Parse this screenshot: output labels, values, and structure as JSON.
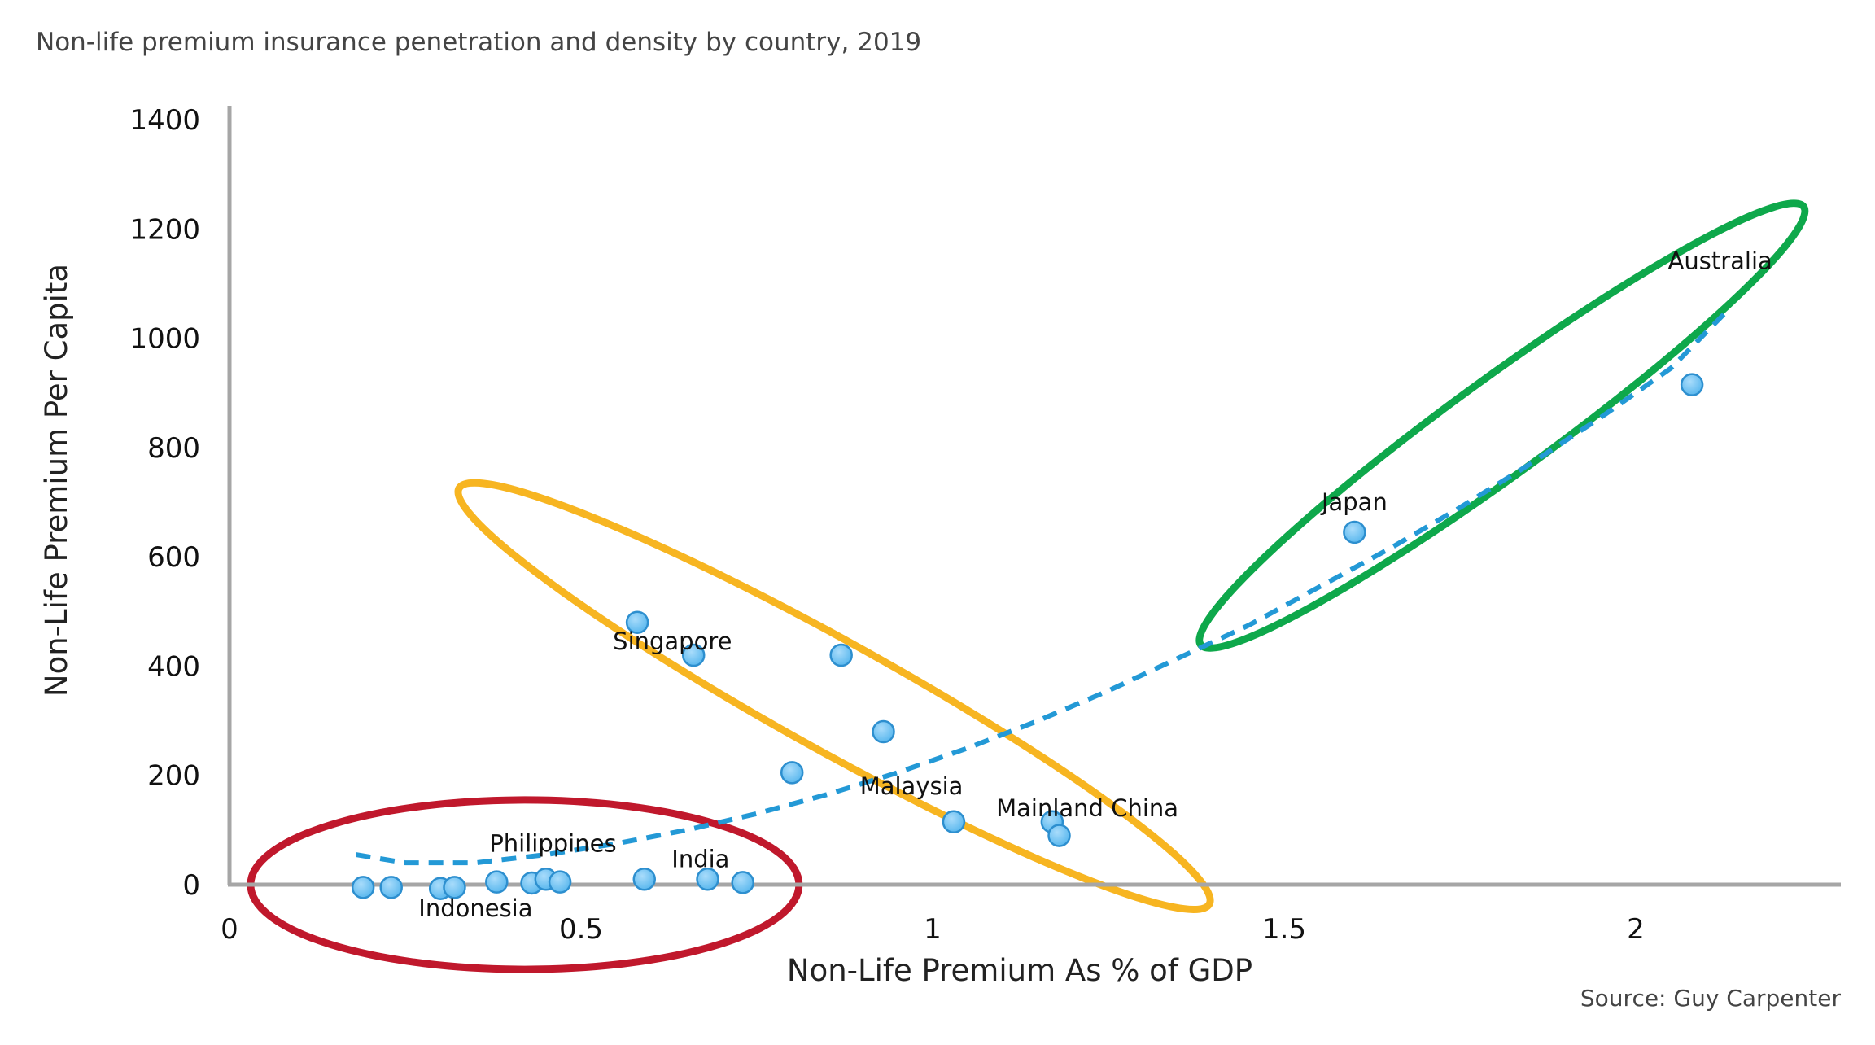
{
  "chart_data": {
    "type": "scatter",
    "title": "Non-life premium insurance penetration and density by country, 2019",
    "xlabel": "Non-Life Premium As % of GDP",
    "ylabel": "Non-Life Premium Per Capita",
    "source": "Source: Guy Carpenter",
    "xlim": [
      0,
      2.3
    ],
    "ylim": [
      0,
      1400
    ],
    "x_ticks": [
      {
        "value": 0,
        "label": "0"
      },
      {
        "value": 0.5,
        "label": "0.5"
      },
      {
        "value": 1,
        "label": "1"
      },
      {
        "value": 1.5,
        "label": "1.5"
      },
      {
        "value": 2,
        "label": "2"
      }
    ],
    "y_ticks": [
      {
        "value": 0,
        "label": "0"
      },
      {
        "value": 200,
        "label": "200"
      },
      {
        "value": 400,
        "label": "400"
      },
      {
        "value": 600,
        "label": "600"
      },
      {
        "value": 800,
        "label": "800"
      },
      {
        "value": 1000,
        "label": "1000"
      },
      {
        "value": 1200,
        "label": "1200"
      },
      {
        "value": 1400,
        "label": "1400"
      }
    ],
    "points": [
      {
        "x": 0.19,
        "y": -5
      },
      {
        "x": 0.23,
        "y": -5
      },
      {
        "x": 0.3,
        "y": -7
      },
      {
        "x": 0.32,
        "y": -5
      },
      {
        "x": 0.38,
        "y": 5
      },
      {
        "x": 0.43,
        "y": 3
      },
      {
        "x": 0.45,
        "y": 10
      },
      {
        "x": 0.47,
        "y": 5
      },
      {
        "x": 0.59,
        "y": 10
      },
      {
        "x": 0.58,
        "y": 480
      },
      {
        "x": 0.66,
        "y": 420
      },
      {
        "x": 0.68,
        "y": 10
      },
      {
        "x": 0.73,
        "y": 4
      },
      {
        "x": 0.8,
        "y": 205
      },
      {
        "x": 0.87,
        "y": 420
      },
      {
        "x": 0.93,
        "y": 280
      },
      {
        "x": 1.03,
        "y": 115
      },
      {
        "x": 1.17,
        "y": 115
      },
      {
        "x": 1.18,
        "y": 90
      },
      {
        "x": 1.6,
        "y": 645
      },
      {
        "x": 2.08,
        "y": 915
      }
    ],
    "labels": [
      {
        "text": "Singapore",
        "x": 0.63,
        "y": 445
      },
      {
        "text": "Malaysia",
        "x": 0.97,
        "y": 180
      },
      {
        "text": "Mainland China",
        "x": 1.22,
        "y": 140
      },
      {
        "text": "Philippines",
        "x": 0.46,
        "y": 75
      },
      {
        "text": "India",
        "x": 0.67,
        "y": 47
      },
      {
        "text": "Indonesia",
        "x": 0.35,
        "y": -43
      },
      {
        "text": "Japan",
        "x": 1.6,
        "y": 700
      },
      {
        "text": "Australia",
        "x": 2.12,
        "y": 1142
      }
    ],
    "trendline": {
      "style": "dashed",
      "color": "#2399d6",
      "points": [
        [
          0.18,
          55
        ],
        [
          0.25,
          40
        ],
        [
          0.35,
          40
        ],
        [
          0.45,
          55
        ],
        [
          0.55,
          75
        ],
        [
          0.65,
          100
        ],
        [
          0.75,
          130
        ],
        [
          0.85,
          165
        ],
        [
          0.95,
          205
        ],
        [
          1.05,
          250
        ],
        [
          1.15,
          300
        ],
        [
          1.25,
          355
        ],
        [
          1.35,
          415
        ],
        [
          1.45,
          475
        ],
        [
          1.55,
          545
        ],
        [
          1.65,
          615
        ],
        [
          1.75,
          690
        ],
        [
          1.85,
          770
        ],
        [
          1.95,
          855
        ],
        [
          2.05,
          945
        ],
        [
          2.13,
          1050
        ]
      ]
    },
    "groups": [
      {
        "color": "#c0182c",
        "cx": 0.42,
        "cy": 0,
        "rx": 0.39,
        "ry": 155,
        "angle_deg": 0
      },
      {
        "color": "#f7b521",
        "cx": 0.86,
        "cy": 345,
        "rx": 0.61,
        "ry": 100,
        "angle_deg": 29
      },
      {
        "color": "#0ea84b",
        "cx": 1.81,
        "cy": 840,
        "rx": 0.53,
        "ry": 88,
        "angle_deg": -36
      }
    ],
    "marker_color": "#5bb8ee",
    "grid": false,
    "legend": "none"
  }
}
